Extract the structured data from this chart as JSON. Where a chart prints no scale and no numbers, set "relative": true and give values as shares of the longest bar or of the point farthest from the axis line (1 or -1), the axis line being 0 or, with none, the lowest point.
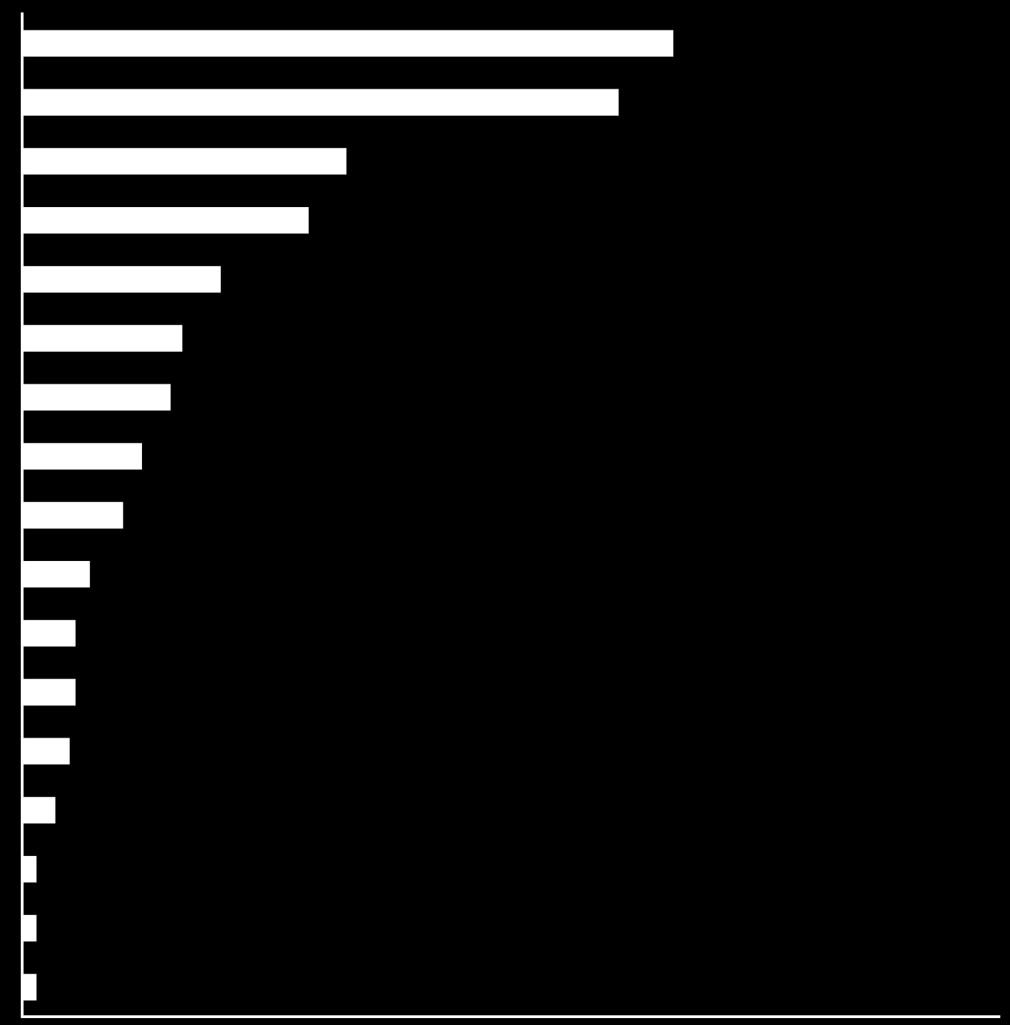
{
  "chart_data": {
    "type": "bar",
    "orientation": "horizontal",
    "relative": true,
    "legend": false,
    "categories": [
      null,
      null,
      null,
      null,
      null,
      null,
      null,
      null,
      null,
      null,
      null,
      null,
      null,
      null,
      null,
      null,
      null
    ],
    "values": [
      1,
      0.916,
      0.498,
      0.44,
      0.305,
      0.246,
      0.228,
      0.184,
      0.155,
      0.104,
      0.082,
      0.082,
      0.073,
      0.051,
      0.022,
      0.022,
      0.022
    ],
    "color": "#ffffff"
  }
}
